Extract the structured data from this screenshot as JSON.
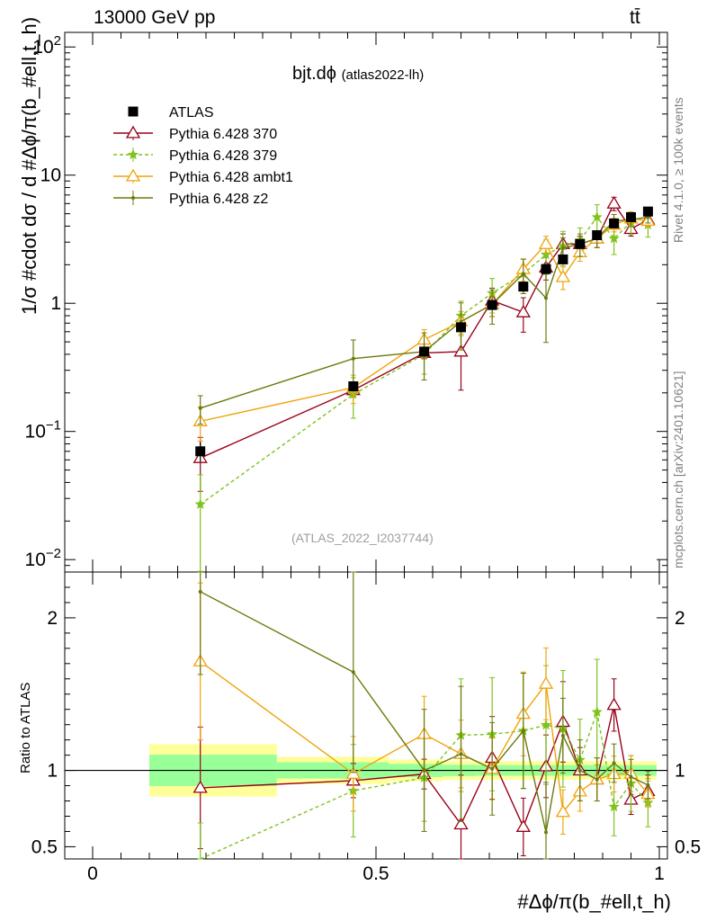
{
  "header": {
    "energy_label": "13000 GeV pp",
    "process_label": "tt̄",
    "rivet_label": "Rivet 4.1.0, ≥ 100k events",
    "mcplots_label": "mcplots.cern.ch [arXiv:2401.10621]"
  },
  "chart_data": {
    "type": "line",
    "title": "bjt.dϕ",
    "subtitle": "(atlas2022-lh)",
    "analysis_tag": "(ATLAS_2022_I2037744)",
    "xlabel": "#Δϕ/π(b_#ell,t_h)",
    "ylabel": "1/σ #cdot dσ / d #Δϕ/π(b_#ell,t_h)",
    "ratio_ylabel": "Ratio to ATLAS",
    "xlim": [
      0,
      1
    ],
    "ylim": [
      0.008,
      130
    ],
    "yscale": "log",
    "ratio_ylim": [
      0.42,
      2.3
    ],
    "x_ticks": [
      "0",
      "0.5",
      "1"
    ],
    "y_ticks": [
      "10^-2",
      "10^-1",
      "1",
      "10",
      "10^2"
    ],
    "ratio_y_ticks": [
      "0.5",
      "1",
      "2"
    ],
    "legend_position": "top-left",
    "x": [
      0.19,
      0.46,
      0.585,
      0.65,
      0.705,
      0.76,
      0.8,
      0.83,
      0.86,
      0.89,
      0.92,
      0.95,
      0.98
    ],
    "data": {
      "name": "ATLAS",
      "values": [
        0.07,
        0.225,
        0.42,
        0.65,
        0.97,
        1.35,
        1.85,
        2.2,
        2.9,
        3.4,
        4.2,
        4.7,
        5.2
      ],
      "errors": [
        0.012,
        0.02,
        0.03,
        0.04,
        0.05,
        0.06,
        0.07,
        0.08,
        0.1,
        0.12,
        0.15,
        0.18,
        0.2
      ]
    },
    "series": [
      {
        "name": "Pythia 6.428 370",
        "color": "#99001a",
        "marker": "triangle-open",
        "dashed": false,
        "values": [
          0.062,
          0.21,
          0.41,
          0.42,
          1.05,
          0.85,
          1.9,
          2.9,
          2.9,
          3.2,
          6.0,
          3.8,
          4.5
        ],
        "rel_err": [
          0.45,
          0.12,
          0.1,
          0.5,
          0.25,
          0.3,
          0.2,
          0.2,
          0.15,
          0.15,
          0.12,
          0.12,
          0.12
        ]
      },
      {
        "name": "Pythia 6.428 379",
        "color": "#7fc31c",
        "marker": "star",
        "dashed": true,
        "values": [
          0.027,
          0.195,
          0.4,
          0.8,
          1.2,
          1.7,
          2.4,
          2.8,
          3.1,
          4.7,
          3.2,
          4.3,
          4.1
        ],
        "rel_err": [
          0.7,
          0.35,
          0.3,
          0.3,
          0.3,
          0.3,
          0.3,
          0.3,
          0.25,
          0.25,
          0.25,
          0.2,
          0.2
        ]
      },
      {
        "name": "Pythia 6.428 ambt1",
        "color": "#f0a30a",
        "marker": "triangle-open",
        "dashed": false,
        "values": [
          0.12,
          0.22,
          0.52,
          0.72,
          0.98,
          1.85,
          2.9,
          1.6,
          2.5,
          3.2,
          4.1,
          4.6,
          4.4
        ],
        "rel_err": [
          0.3,
          0.25,
          0.2,
          0.2,
          0.2,
          0.2,
          0.15,
          0.2,
          0.15,
          0.15,
          0.12,
          0.12,
          0.1
        ]
      },
      {
        "name": "Pythia 6.428 z2",
        "color": "#6b7a0c",
        "marker": "dot",
        "dashed": false,
        "values": [
          0.152,
          0.37,
          0.42,
          0.72,
          0.98,
          1.7,
          1.1,
          2.7,
          2.9,
          3.2,
          4.4,
          4.5,
          4.7
        ],
        "rel_err": [
          0.25,
          0.4,
          0.4,
          0.4,
          0.3,
          0.3,
          0.55,
          0.2,
          0.2,
          0.15,
          0.12,
          0.12,
          0.1
        ]
      }
    ]
  }
}
